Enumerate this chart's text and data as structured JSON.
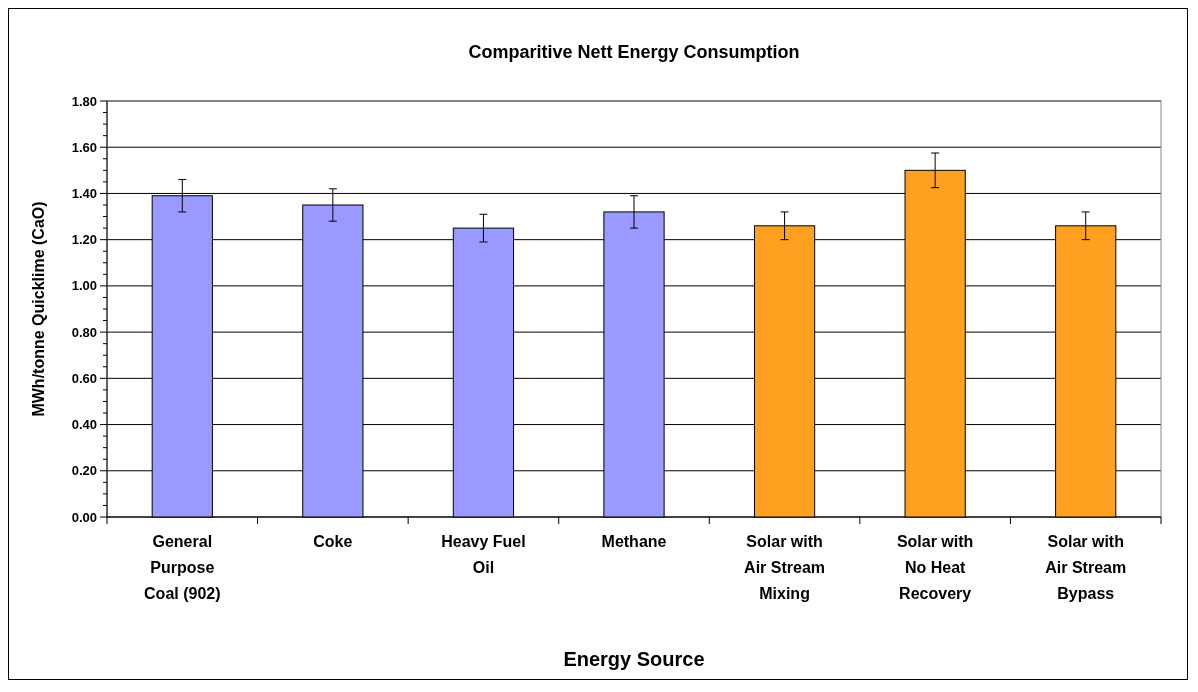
{
  "chart_data": {
    "type": "bar",
    "title": "Comparitive Nett Energy Consumption",
    "xlabel": "Energy Source",
    "ylabel": "MWh/tonne Quicklime (CaO)",
    "categories": [
      "General Purpose Coal (902)",
      "Coke",
      "Heavy Fuel Oil",
      "Methane",
      "Solar with Air Stream Mixing",
      "Solar with No Heat Recovery",
      "Solar with Air Stream Bypass"
    ],
    "values": [
      1.39,
      1.35,
      1.25,
      1.32,
      1.26,
      1.5,
      1.26
    ],
    "errors": [
      0.07,
      0.07,
      0.06,
      0.07,
      0.06,
      0.075,
      0.06
    ],
    "colors": [
      "#9999ff",
      "#9999ff",
      "#9999ff",
      "#9999ff",
      "#ffa020",
      "#ffa020",
      "#ffa020"
    ],
    "ylim": [
      0,
      1.8
    ],
    "yticks": [
      {
        "value": 0,
        "label": "0.00"
      },
      {
        "value": 0.2,
        "label": "0.20"
      },
      {
        "value": 0.4,
        "label": "0.40"
      },
      {
        "value": 0.6,
        "label": "0.60"
      },
      {
        "value": 0.8,
        "label": "0.80"
      },
      {
        "value": 1.0,
        "label": "1.00"
      },
      {
        "value": 1.2,
        "label": "1.20"
      },
      {
        "value": 1.4,
        "label": "1.40"
      },
      {
        "value": 1.6,
        "label": "1.60"
      },
      {
        "value": 1.8,
        "label": "1.80"
      }
    ],
    "grid": "y"
  }
}
